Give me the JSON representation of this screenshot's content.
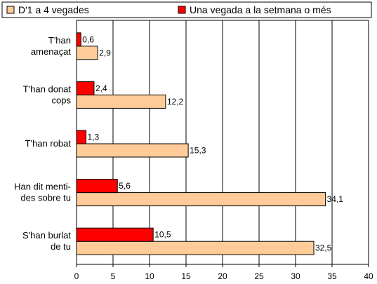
{
  "chart_data": {
    "type": "bar",
    "orientation": "horizontal",
    "categories": [
      [
        "T'han",
        "amenaçat"
      ],
      [
        "T'han donat",
        "cops"
      ],
      [
        "T'han robat"
      ],
      [
        "Han dit menti-",
        "des sobre tu"
      ],
      [
        "S'han burlat",
        "de tu"
      ]
    ],
    "series": [
      {
        "name": "D'1 a 4 vegades",
        "color": "#FFCC99",
        "values": [
          2.9,
          12.2,
          15.3,
          34.1,
          32.5
        ],
        "labels": [
          "2,9",
          "12,2",
          "15,3",
          "34,1",
          "32,5"
        ]
      },
      {
        "name": "Una vegada a la setmana o més",
        "color": "#FF0000",
        "values": [
          0.6,
          2.4,
          1.3,
          5.6,
          10.5
        ],
        "labels": [
          "0,6",
          "2,4",
          "1,3",
          "5,6",
          "10,5"
        ]
      }
    ],
    "xlim": [
      0,
      40
    ],
    "xticks": [
      "0",
      "5",
      "10",
      "15",
      "20",
      "25",
      "30",
      "35",
      "40"
    ],
    "grid": "vertical",
    "legend": "top"
  }
}
